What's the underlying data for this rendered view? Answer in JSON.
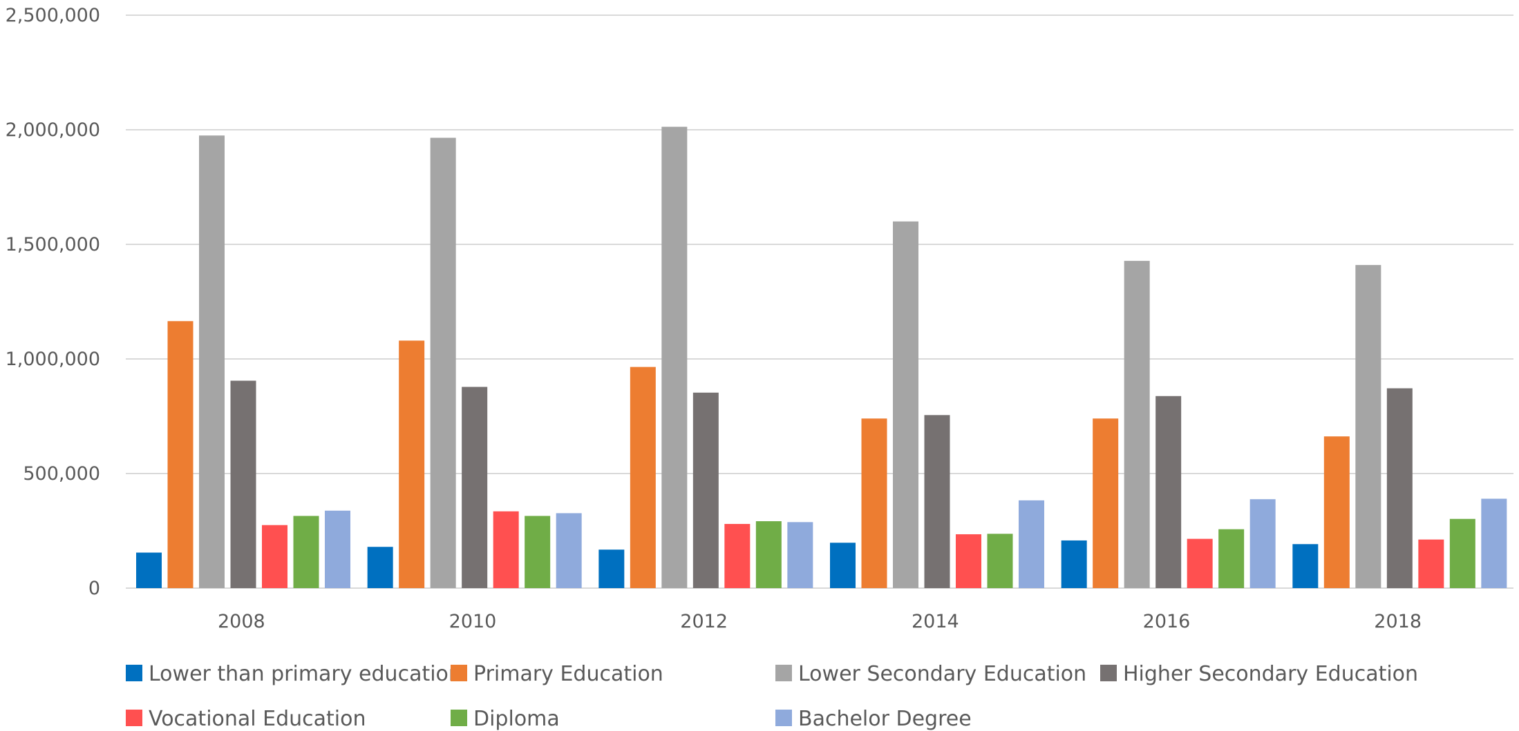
{
  "chart_data": {
    "type": "bar",
    "title": "",
    "xlabel": "",
    "ylabel": "",
    "ylim": [
      0,
      2500000
    ],
    "yticks": [
      0,
      500000,
      1000000,
      1500000,
      2000000,
      2500000
    ],
    "ytick_labels": [
      "0",
      "500,000",
      "1,000,000",
      "1,500,000",
      "2,000,000",
      "2,500,000"
    ],
    "grid": true,
    "legend_position": "bottom",
    "categories": [
      "2008",
      "2010",
      "2012",
      "2014",
      "2016",
      "2018"
    ],
    "series": [
      {
        "name": "Lower than primary education",
        "color": "#0070C0",
        "values": [
          155000,
          180000,
          168000,
          198000,
          208000,
          192000
        ]
      },
      {
        "name": "Primary Education",
        "color": "#ED7D31",
        "values": [
          1165000,
          1080000,
          965000,
          740000,
          740000,
          662000
        ]
      },
      {
        "name": "Lower Secondary Education",
        "color": "#A5A5A5",
        "values": [
          1975000,
          1965000,
          2013000,
          1600000,
          1428000,
          1410000
        ]
      },
      {
        "name": "Higher Secondary Education",
        "color": "#767171",
        "values": [
          905000,
          878000,
          853000,
          755000,
          838000,
          872000
        ]
      },
      {
        "name": "Vocational Education",
        "color": "#FF5050",
        "values": [
          275000,
          335000,
          280000,
          235000,
          215000,
          212000
        ]
      },
      {
        "name": "Diploma",
        "color": "#70AD47",
        "values": [
          315000,
          315000,
          292000,
          237000,
          257000,
          302000
        ]
      },
      {
        "name": "Bachelor Degree",
        "color": "#8FAADC",
        "values": [
          338000,
          327000,
          288000,
          383000,
          388000,
          390000
        ]
      }
    ]
  }
}
